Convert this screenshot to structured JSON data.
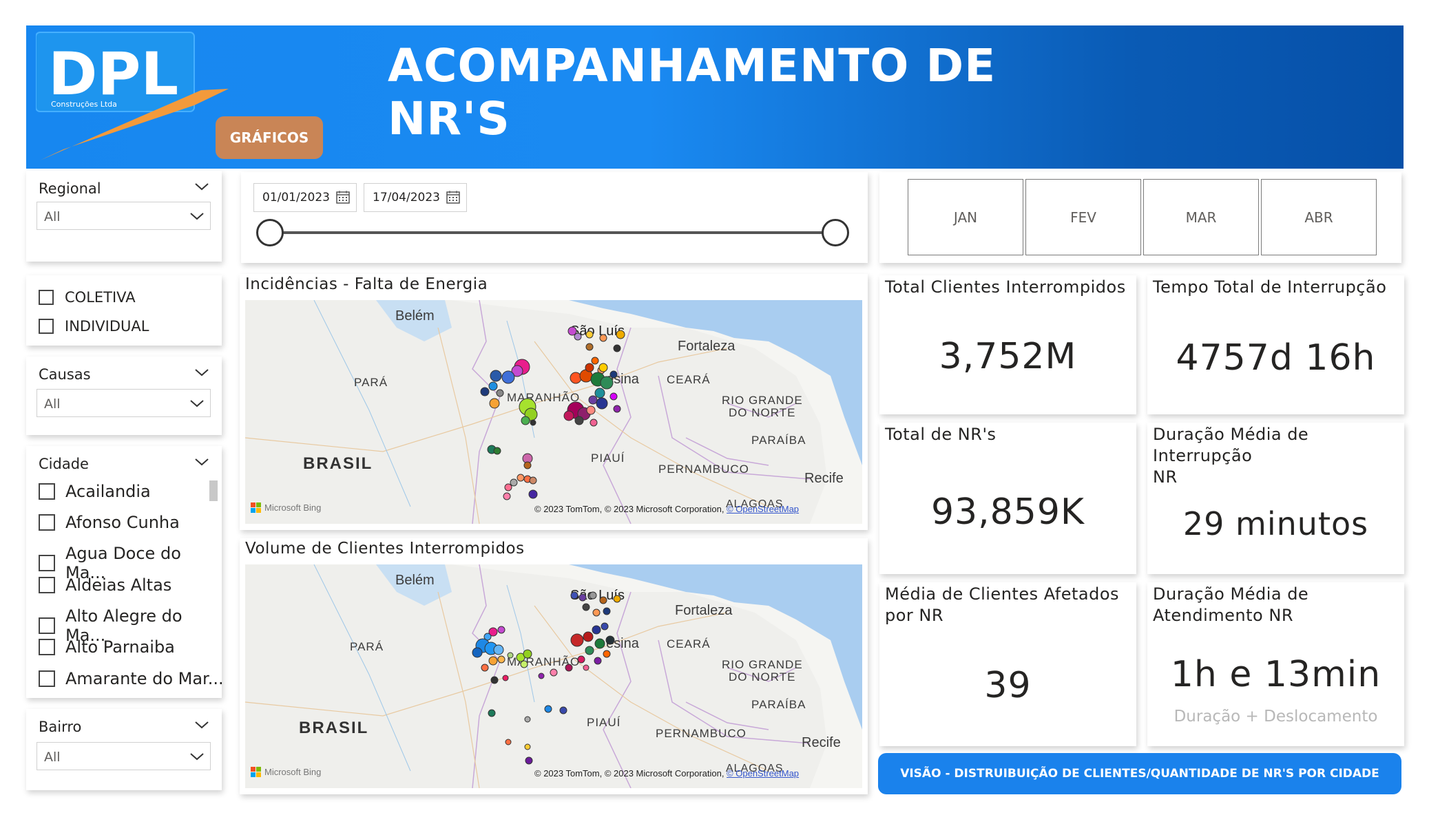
{
  "header": {
    "logo_text": "DPL",
    "logo_subtext": "Construções Ltda",
    "title": "ACOMPANHAMENTO DE NR'S",
    "graficos_button": "GRÁFICOS"
  },
  "slicers": {
    "regional": {
      "title": "Regional",
      "value": "All"
    },
    "tipo": {
      "options": [
        "COLETIVA",
        "INDIVIDUAL"
      ]
    },
    "causas": {
      "title": "Causas",
      "value": "All"
    },
    "cidade": {
      "title": "Cidade",
      "items": [
        "Acailandia",
        "Afonso Cunha",
        "Agua Doce do Ma...",
        "Aldeias Altas",
        "Alto Alegre do Ma...",
        "Alto Parnaiba",
        "Amarante do Mar..."
      ]
    },
    "bairro": {
      "title": "Bairro",
      "value": "All"
    },
    "date": {
      "start": "01/01/2023",
      "end": "17/04/2023"
    }
  },
  "months": [
    "JAN",
    "FEV",
    "MAR",
    "ABR"
  ],
  "maps": {
    "incidencias_title": "Incidências - Falta de Energia",
    "volume_title": "Volume de Clientes Interrompidos",
    "labels": {
      "belem": "Belém",
      "sao_luis": "São Luís",
      "fortaleza": "Fortaleza",
      "teresina": "esina",
      "para": "PARÁ",
      "maranhao": "MARANHÃO",
      "ceara": "CEARÁ",
      "rio_grande": "RIO GRANDE",
      "do_norte": "DO NORTE",
      "paraiba": "PARAÍBA",
      "piaui": "PIAUÍ",
      "pernambuco": "PERNAMBUCO",
      "recife": "Recife",
      "brasil": "BRASIL",
      "alagoas": "ALAGOAS"
    },
    "attribution": "© 2023 TomTom, © 2023 Microsoft Corporation,",
    "osm": "© OpenStreetMap",
    "bing": "Microsoft Bing"
  },
  "kpis": {
    "total_clientes": {
      "title": "Total Clientes Interrompidos",
      "value": "3,752M"
    },
    "tempo_total": {
      "title": "Tempo Total de Interrupção",
      "value": "4757d 16h"
    },
    "total_nrs": {
      "title": "Total de NR's",
      "value": "93,859K"
    },
    "duracao_media_interrupcao": {
      "title_line1": "Duração Média de Interrupção",
      "title_line2": "NR",
      "value": "29 minutos"
    },
    "media_clientes": {
      "title_line1": "Média de Clientes Afetados",
      "title_line2": "por NR",
      "value": "39"
    },
    "duracao_media_atendimento": {
      "title_line1": "Duração Média de",
      "title_line2": "Atendimento NR",
      "value": "1h e 13min",
      "subtitle": "Duração + Deslocamento"
    }
  },
  "visao_button": "VISÃO - DISTRUIBUIÇÃO DE CLIENTES/QUANTIDADE  DE NR'S POR CIDADE"
}
